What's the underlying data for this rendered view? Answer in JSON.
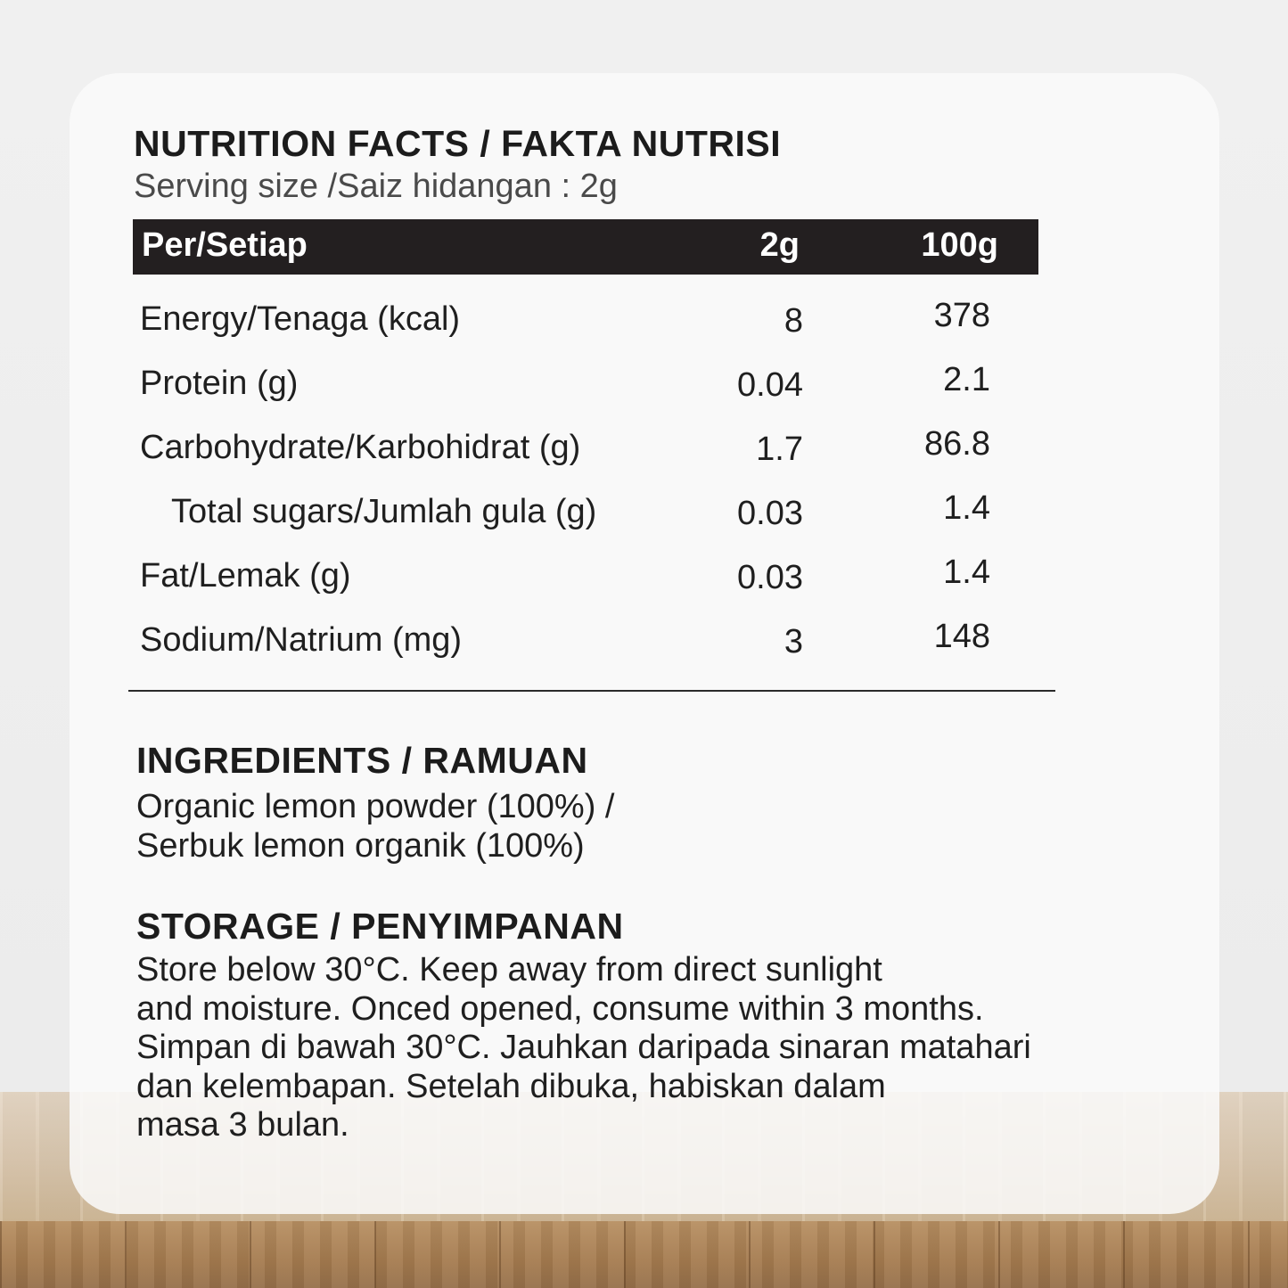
{
  "nutrition": {
    "title": "NUTRITION FACTS / FAKTA NUTRISI",
    "serving_size": "Serving size /Saiz hidangan : 2g",
    "header": {
      "label": "Per/Setiap",
      "col2": "2g",
      "col3": "100g"
    },
    "rows": [
      {
        "label": "Energy/Tenaga (kcal)",
        "per_serving": "8",
        "per_100g": "378"
      },
      {
        "label": "Protein (g)",
        "per_serving": "0.04",
        "per_100g": "2.1"
      },
      {
        "label": "Carbohydrate/Karbohidrat (g)",
        "per_serving": "1.7",
        "per_100g": "86.8"
      },
      {
        "label": "Total sugars/Jumlah gula (g)",
        "per_serving": "0.03",
        "per_100g": "1.4"
      },
      {
        "label": "Fat/Lemak (g)",
        "per_serving": "0.03",
        "per_100g": "1.4"
      },
      {
        "label": "Sodium/Natrium (mg)",
        "per_serving": "3",
        "per_100g": "148"
      }
    ]
  },
  "ingredients": {
    "heading": "INGREDIENTS / RAMUAN",
    "lines": [
      "Organic lemon powder (100%) /",
      "Serbuk lemon organik (100%)"
    ]
  },
  "storage": {
    "heading": "STORAGE / PENYIMPANAN",
    "lines": [
      "Store below 30°C. Keep away from direct sunlight",
      "and moisture. Onced opened, consume within 3 months.",
      "Simpan di bawah 30°C. Jauhkan daripada sinaran matahari",
      "dan kelembapan. Setelah dibuka, habiskan dalam",
      "masa 3 bulan."
    ]
  }
}
